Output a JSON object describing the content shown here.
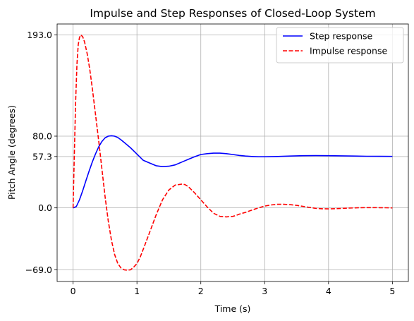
{
  "chart_data": {
    "type": "line",
    "title": "Impulse and Step Responses of Closed-Loop System",
    "xlabel": "Time (s)",
    "ylabel": "Pitch Angle (degrees)",
    "xlim": [
      -0.25,
      5.25
    ],
    "ylim": [
      -82.1,
      205.1
    ],
    "grid": true,
    "legend_position": "upper right",
    "x_ticks": [
      {
        "value": 0,
        "label": "0"
      },
      {
        "value": 1,
        "label": "1"
      },
      {
        "value": 2,
        "label": "2"
      },
      {
        "value": 3,
        "label": "3"
      },
      {
        "value": 4,
        "label": "4"
      },
      {
        "value": 5,
        "label": "5"
      }
    ],
    "y_ticks": [
      {
        "value": -69.0,
        "label": "−69.0"
      },
      {
        "value": 0.0,
        "label": "0.0"
      },
      {
        "value": 57.3,
        "label": "57.3"
      },
      {
        "value": 80.0,
        "label": "80.0"
      },
      {
        "value": 193.0,
        "label": "193.0"
      }
    ],
    "series": [
      {
        "name": "Step response",
        "color": "#0000ff",
        "style": "solid",
        "x": [
          0,
          0.05,
          0.1,
          0.15,
          0.2,
          0.25,
          0.3,
          0.35,
          0.4,
          0.45,
          0.5,
          0.55,
          0.6,
          0.65,
          0.7,
          0.75,
          0.8,
          0.9,
          1.0,
          1.1,
          1.2,
          1.3,
          1.4,
          1.5,
          1.6,
          1.7,
          1.8,
          1.9,
          2.0,
          2.1,
          2.2,
          2.3,
          2.4,
          2.5,
          2.6,
          2.7,
          2.8,
          2.9,
          3.0,
          3.2,
          3.4,
          3.6,
          3.8,
          4.0,
          4.2,
          4.4,
          4.6,
          4.8,
          5.0
        ],
        "values": [
          0,
          1.5,
          9,
          19,
          30,
          41,
          51,
          60,
          68,
          74,
          78,
          80,
          80.5,
          80,
          78.5,
          76,
          73,
          67,
          60,
          53,
          50,
          47,
          46,
          46.5,
          48,
          51,
          54,
          57,
          59.5,
          60.5,
          61,
          61,
          60.5,
          59.5,
          58.5,
          57.8,
          57.3,
          57,
          57,
          57.3,
          57.8,
          58.2,
          58.3,
          58.2,
          58,
          57.8,
          57.6,
          57.5,
          57.4
        ]
      },
      {
        "name": "Impulse response",
        "color": "#ff0000",
        "style": "dashed",
        "x": [
          0,
          0.02,
          0.04,
          0.06,
          0.08,
          0.1,
          0.12,
          0.15,
          0.18,
          0.22,
          0.26,
          0.3,
          0.35,
          0.4,
          0.45,
          0.5,
          0.55,
          0.6,
          0.65,
          0.7,
          0.75,
          0.8,
          0.85,
          0.9,
          0.95,
          1.0,
          1.05,
          1.1,
          1.2,
          1.3,
          1.4,
          1.5,
          1.6,
          1.7,
          1.75,
          1.8,
          1.9,
          2.0,
          2.1,
          2.2,
          2.3,
          2.4,
          2.5,
          2.55,
          2.6,
          2.7,
          2.8,
          2.9,
          3.0,
          3.1,
          3.2,
          3.3,
          3.4,
          3.5,
          3.6,
          3.7,
          3.8,
          3.9,
          4.0,
          4.1,
          4.2,
          4.3,
          4.4,
          4.5,
          4.6,
          4.7,
          4.8,
          4.9,
          5.0
        ],
        "values": [
          0,
          60,
          120,
          160,
          182,
          190,
          193,
          191,
          185,
          172,
          155,
          134,
          105,
          75,
          44,
          13,
          -14,
          -36,
          -52,
          -62,
          -67,
          -69,
          -69.5,
          -69,
          -66,
          -62,
          -55,
          -46,
          -27,
          -8,
          9,
          20,
          25.5,
          26.5,
          26,
          24,
          17,
          9,
          1,
          -6,
          -9.5,
          -10,
          -9.5,
          -8.5,
          -7,
          -5,
          -2.5,
          0,
          2,
          3.3,
          4,
          4,
          3.6,
          2.8,
          1.7,
          0.5,
          -0.5,
          -1,
          -1.1,
          -0.9,
          -0.6,
          -0.3,
          0,
          0.2,
          0.3,
          0.3,
          0.2,
          0.1,
          0
        ]
      }
    ]
  }
}
